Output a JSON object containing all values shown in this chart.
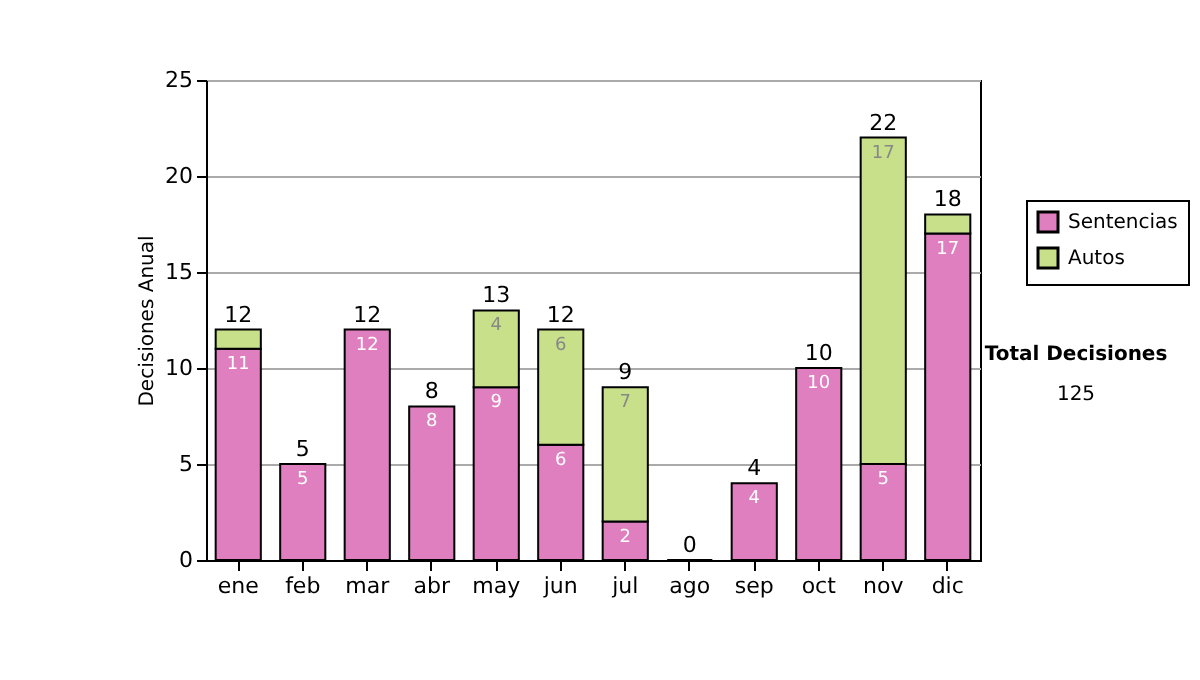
{
  "chart_data": {
    "type": "bar",
    "stacked": true,
    "ylabel": "Decisiones Anual",
    "categories": [
      "ene",
      "feb",
      "mar",
      "abr",
      "may",
      "jun",
      "jul",
      "ago",
      "sep",
      "oct",
      "nov",
      "dic"
    ],
    "series": [
      {
        "name": "Sentencias",
        "color": "#e07fc0",
        "values": [
          11,
          5,
          12,
          8,
          9,
          6,
          2,
          0,
          4,
          10,
          5,
          17
        ],
        "value_labels": [
          "11",
          "5",
          "12",
          "8",
          "9",
          "6",
          "2",
          null,
          "4",
          "10",
          "5",
          "17"
        ]
      },
      {
        "name": "Autos",
        "color": "#c8e08a",
        "values": [
          1,
          null,
          null,
          null,
          4,
          6,
          7,
          null,
          null,
          null,
          17,
          1
        ],
        "value_labels": [
          null,
          null,
          null,
          null,
          "4",
          "6",
          "7",
          null,
          null,
          null,
          "17",
          null
        ]
      }
    ],
    "totals": [
      "12",
      "5",
      "12",
      "8",
      "13",
      "12",
      "9",
      "0",
      "4",
      "10",
      "22",
      "18"
    ],
    "ylim": [
      0,
      25
    ],
    "yticks": [
      0,
      5,
      10,
      15,
      20,
      25
    ],
    "grid": "y",
    "legend": "right",
    "annotations": [
      "Total Decisiones",
      "125"
    ]
  }
}
